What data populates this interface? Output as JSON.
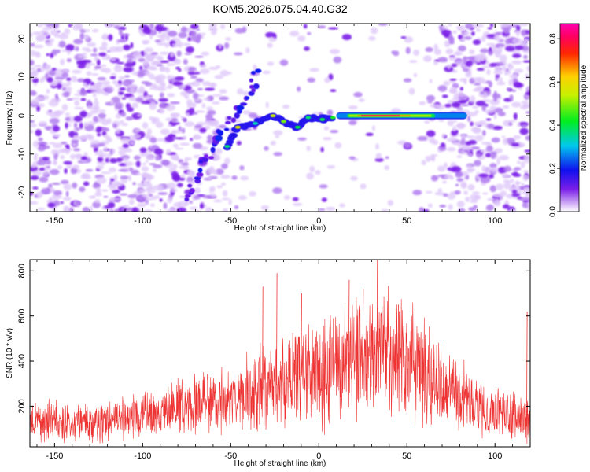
{
  "title": "KOM5.2026.075.04.40.G32",
  "chart_data": [
    {
      "type": "heatmap",
      "xlabel": "Height of straight line (km)",
      "ylabel": "Frequency (Hz)",
      "xlim": [
        -164,
        120
      ],
      "ylim": [
        -25,
        24
      ],
      "xticks": [
        -150,
        -100,
        -50,
        0,
        50,
        100
      ],
      "yticks": [
        20,
        10,
        0,
        -10,
        -20
      ],
      "xtick_labels": [
        "-150",
        "-100",
        "-50",
        "0",
        "50",
        "100"
      ],
      "ytick_labels": [
        "20",
        "10",
        "0",
        "-10",
        "-20"
      ],
      "grid": false,
      "colorbar": {
        "label": "Normalized spectral amplitude",
        "range": [
          0.0,
          0.87
        ],
        "ticks": [
          0.0,
          0.2,
          0.4,
          0.6,
          0.8
        ],
        "tick_labels": [
          "0.0",
          "0.2",
          "0.4",
          "0.6",
          "0.8"
        ],
        "colormap": "rainbow (violet-blue-cyan-green-yellow-orange-red-magenta)"
      },
      "features": {
        "noise_background": "scattered violet speckle; dense for x < -60 and x > 70, sparse in center",
        "main_trace": {
          "description": "strong narrowband signal near 0 Hz",
          "x_range": [
            10,
            84
          ],
          "frequency_hz": 0,
          "peak_amplitude": 0.85,
          "peak_x_range": [
            20,
            60
          ]
        },
        "lower_segment": [
          {
            "x": -52,
            "f": -8
          },
          {
            "x": -46,
            "f": -3
          },
          {
            "x": -36,
            "f": -2
          },
          {
            "x": -26,
            "f": 0
          },
          {
            "x": -20,
            "f": -1.5
          },
          {
            "x": -12,
            "f": -3
          },
          {
            "x": -6,
            "f": -0.5
          },
          {
            "x": 2,
            "f": -1
          },
          {
            "x": 8,
            "f": -0.5
          }
        ],
        "diagonal_streak": [
          {
            "x": -75,
            "f": -22
          },
          {
            "x": -65,
            "f": -12
          },
          {
            "x": -55,
            "f": -4
          },
          {
            "x": -40,
            "f": 4
          },
          {
            "x": -35,
            "f": 12
          }
        ]
      }
    },
    {
      "type": "line",
      "xlabel": "Height of straight line (km)",
      "ylabel": "SNR (10 * v/v)",
      "xlim": [
        -164,
        120
      ],
      "ylim": [
        20,
        850
      ],
      "xticks": [
        -150,
        -100,
        -50,
        0,
        50,
        100
      ],
      "yticks": [
        200,
        400,
        600,
        800
      ],
      "xtick_labels": [
        "-150",
        "-100",
        "-50",
        "0",
        "50",
        "100"
      ],
      "ytick_labels": [
        "200",
        "400",
        "600",
        "800"
      ],
      "grid": false,
      "series": [
        {
          "name": "SNR",
          "color": "#ee3333",
          "envelope_mean": [
            {
              "x": -164,
              "y": 140
            },
            {
              "x": -140,
              "y": 130
            },
            {
              "x": -110,
              "y": 140
            },
            {
              "x": -90,
              "y": 175
            },
            {
              "x": -70,
              "y": 210
            },
            {
              "x": -55,
              "y": 230
            },
            {
              "x": -40,
              "y": 260
            },
            {
              "x": -20,
              "y": 300
            },
            {
              "x": 0,
              "y": 360
            },
            {
              "x": 20,
              "y": 420
            },
            {
              "x": 35,
              "y": 440
            },
            {
              "x": 50,
              "y": 410
            },
            {
              "x": 65,
              "y": 330
            },
            {
              "x": 80,
              "y": 240
            },
            {
              "x": 100,
              "y": 170
            },
            {
              "x": 120,
              "y": 140
            }
          ],
          "envelope_spread": [
            {
              "x": -164,
              "y": 70
            },
            {
              "x": -100,
              "y": 75
            },
            {
              "x": -60,
              "y": 110
            },
            {
              "x": -30,
              "y": 150
            },
            {
              "x": 0,
              "y": 190
            },
            {
              "x": 35,
              "y": 210
            },
            {
              "x": 60,
              "y": 170
            },
            {
              "x": 90,
              "y": 100
            },
            {
              "x": 120,
              "y": 75
            }
          ],
          "notable_peaks": [
            {
              "x": 33,
              "y": 850
            },
            {
              "x": -24,
              "y": 790
            },
            {
              "x": -32,
              "y": 730
            },
            {
              "x": -10,
              "y": 700
            },
            {
              "x": 17,
              "y": 760
            },
            {
              "x": 25,
              "y": 720
            },
            {
              "x": 45,
              "y": 650
            },
            {
              "x": 118,
              "y": 620
            }
          ]
        }
      ]
    }
  ]
}
